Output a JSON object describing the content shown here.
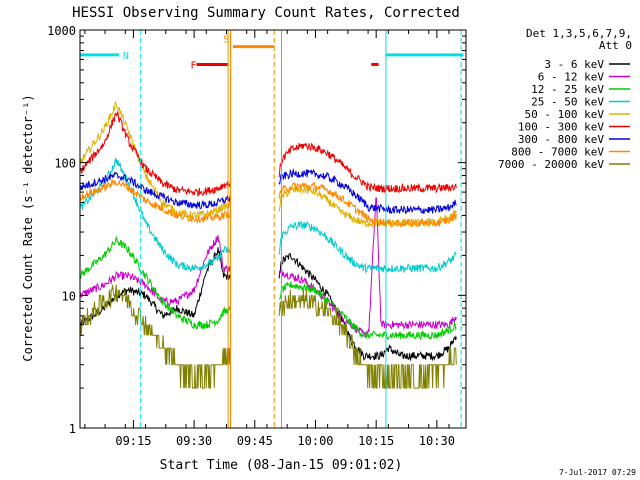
{
  "chart_data": {
    "type": "line",
    "title": "HESSI Observing Summary Count Rates, Corrected",
    "xlabel": "Start Time (08-Jan-15 09:01:02)",
    "ylabel": "Corrected Count Rate (s⁻¹ detector⁻¹)",
    "yscale": "log",
    "ylim": [
      1,
      1000
    ],
    "xlim_minutes": [
      9.03,
      10.62
    ],
    "y_ticks": [
      "1",
      "10",
      "100",
      "1000"
    ],
    "x_ticks": [
      {
        "label": "09:15",
        "t": 9.25
      },
      {
        "label": "09:30",
        "t": 9.5
      },
      {
        "label": "09:45",
        "t": 9.75
      },
      {
        "label": "10:00",
        "t": 10.0
      },
      {
        "label": "10:15",
        "t": 10.25
      },
      {
        "label": "10:30",
        "t": 10.5
      }
    ],
    "legend_title": [
      "Det 1,3,5,6,7,9,",
      "Att 0"
    ],
    "legend_position": "right",
    "footer": "7-Jul-2017 07:29",
    "gap": [
      9.65,
      9.85
    ],
    "series": [
      {
        "name": "3 - 6 keV",
        "color": "#000000",
        "t": [
          9.03,
          9.13,
          9.18,
          9.23,
          9.3,
          9.37,
          9.43,
          9.5,
          9.55,
          9.6,
          9.62,
          9.85,
          9.86,
          9.9,
          9.95,
          10.0,
          10.05,
          10.1,
          10.15,
          10.2,
          10.22,
          10.27,
          10.3,
          10.35,
          10.4,
          10.5,
          10.55,
          10.58
        ],
        "y": [
          6,
          8,
          10,
          11,
          10,
          7,
          8,
          7,
          15,
          22,
          14,
          13,
          18,
          20,
          16,
          13,
          10,
          7,
          4.5,
          3.5,
          3.5,
          3.5,
          4,
          3.5,
          3.5,
          3.5,
          4,
          5
        ]
      },
      {
        "name": "6 - 12 keV",
        "color": "#cc00cc",
        "t": [
          9.03,
          9.13,
          9.18,
          9.23,
          9.3,
          9.37,
          9.43,
          9.5,
          9.55,
          9.6,
          9.62,
          9.85,
          9.86,
          9.9,
          9.95,
          10.0,
          10.05,
          10.1,
          10.15,
          10.2,
          10.22,
          10.25,
          10.27,
          10.3,
          10.35,
          10.4,
          10.5,
          10.55,
          10.58
        ],
        "y": [
          10,
          12,
          14,
          14,
          12,
          9,
          9,
          11,
          20,
          28,
          16,
          14,
          15,
          14,
          13,
          11,
          9,
          7,
          6,
          5,
          5.5,
          60,
          6,
          6,
          6,
          6,
          6,
          6,
          7
        ]
      },
      {
        "name": "12 - 25 keV",
        "color": "#00cc00",
        "t": [
          9.03,
          9.13,
          9.18,
          9.23,
          9.3,
          9.37,
          9.43,
          9.5,
          9.55,
          9.6,
          9.62,
          9.85,
          9.86,
          9.9,
          9.95,
          10.0,
          10.05,
          10.1,
          10.15,
          10.2,
          10.22,
          10.27,
          10.3,
          10.35,
          10.4,
          10.5,
          10.55,
          10.58
        ],
        "y": [
          14,
          20,
          26,
          22,
          14,
          9,
          7,
          6,
          6,
          6.5,
          7.5,
          9,
          11,
          12,
          11.5,
          11,
          9,
          7.5,
          6,
          5,
          5,
          5,
          5,
          5,
          5,
          5,
          5.5,
          6
        ]
      },
      {
        "name": "25 - 50 keV",
        "color": "#00cccc",
        "t": [
          9.03,
          9.13,
          9.18,
          9.23,
          9.3,
          9.37,
          9.43,
          9.5,
          9.55,
          9.6,
          9.62,
          9.85,
          9.86,
          9.9,
          9.95,
          10.0,
          10.05,
          10.1,
          10.15,
          10.2,
          10.22,
          10.27,
          10.3,
          10.35,
          10.4,
          10.5,
          10.55,
          10.58
        ],
        "y": [
          45,
          70,
          105,
          70,
          35,
          22,
          17,
          16,
          17,
          19,
          22,
          20,
          28,
          33,
          34,
          32,
          27,
          22,
          18,
          16,
          16,
          16,
          16,
          16,
          16,
          16,
          18,
          20
        ]
      },
      {
        "name": "50 - 100 keV",
        "color": "#e0b000",
        "t": [
          9.03,
          9.13,
          9.18,
          9.23,
          9.3,
          9.37,
          9.43,
          9.5,
          9.55,
          9.6,
          9.62,
          9.85,
          9.86,
          9.9,
          9.95,
          10.0,
          10.05,
          10.1,
          10.15,
          10.2,
          10.22,
          10.27,
          10.3,
          10.35,
          10.4,
          10.5,
          10.55,
          10.58
        ],
        "y": [
          100,
          180,
          280,
          170,
          80,
          50,
          42,
          40,
          41,
          44,
          47,
          45,
          55,
          62,
          63,
          60,
          52,
          43,
          38,
          35,
          35,
          35,
          35,
          35,
          35,
          36,
          38,
          42
        ]
      },
      {
        "name": "100 - 300 keV",
        "color": "#ee0000",
        "t": [
          9.03,
          9.13,
          9.18,
          9.23,
          9.3,
          9.37,
          9.43,
          9.5,
          9.55,
          9.6,
          9.62,
          9.85,
          9.86,
          9.9,
          9.95,
          10.0,
          10.05,
          10.1,
          10.15,
          10.2,
          10.22,
          10.27,
          10.3,
          10.35,
          10.4,
          10.5,
          10.55,
          10.58
        ],
        "y": [
          85,
          140,
          240,
          145,
          90,
          70,
          62,
          60,
          61,
          64,
          68,
          80,
          105,
          125,
          135,
          130,
          118,
          100,
          82,
          70,
          65,
          64,
          64,
          64,
          64,
          64,
          65,
          66
        ]
      },
      {
        "name": "300 - 800 keV",
        "color": "#0000dd",
        "t": [
          9.03,
          9.13,
          9.18,
          9.23,
          9.3,
          9.37,
          9.43,
          9.5,
          9.55,
          9.6,
          9.62,
          9.85,
          9.86,
          9.9,
          9.95,
          10.0,
          10.05,
          10.1,
          10.15,
          10.2,
          10.22,
          10.27,
          10.3,
          10.35,
          10.4,
          10.5,
          10.55,
          10.58
        ],
        "y": [
          65,
          75,
          80,
          75,
          62,
          55,
          50,
          48,
          48,
          50,
          52,
          70,
          78,
          82,
          83,
          82,
          78,
          70,
          60,
          50,
          46,
          45,
          44,
          44,
          44,
          44,
          46,
          50
        ]
      },
      {
        "name": "800 - 7000 keV",
        "color": "#ff8800",
        "t": [
          9.03,
          9.13,
          9.18,
          9.23,
          9.3,
          9.37,
          9.43,
          9.5,
          9.55,
          9.6,
          9.62,
          9.85,
          9.86,
          9.9,
          9.95,
          10.0,
          10.05,
          10.1,
          10.15,
          10.2,
          10.22,
          10.27,
          10.3,
          10.35,
          10.4,
          10.5,
          10.55,
          10.58
        ],
        "y": [
          55,
          65,
          72,
          65,
          52,
          45,
          40,
          38,
          38,
          39,
          40,
          55,
          62,
          66,
          67,
          66,
          62,
          55,
          47,
          40,
          37,
          36,
          35,
          35,
          35,
          35,
          37,
          40
        ]
      },
      {
        "name": "7000 - 20000 keV",
        "color": "#808000",
        "t": [
          9.03,
          9.13,
          9.18,
          9.23,
          9.3,
          9.37,
          9.43,
          9.5,
          9.55,
          9.6,
          9.62,
          9.85,
          9.86,
          9.9,
          9.95,
          10.0,
          10.05,
          10.1,
          10.15,
          10.2,
          10.22,
          10.27,
          10.3,
          10.35,
          10.4,
          10.5,
          10.55,
          10.58
        ],
        "y": [
          6,
          9,
          11,
          9,
          6,
          4,
          3,
          2.5,
          2.5,
          3,
          3.5,
          7,
          8.5,
          9,
          9,
          8.5,
          7.5,
          6,
          4,
          3,
          2.5,
          2.5,
          2.5,
          2.5,
          2.5,
          2.5,
          3,
          3.5
        ]
      }
    ],
    "bars": [
      {
        "label": "N",
        "color": "#00e0e0",
        "t0": 9.03,
        "t1": 9.19,
        "y": 650
      },
      {
        "label": "",
        "color": "#00e0e0",
        "t0": 10.29,
        "t1": 10.61,
        "y": 650
      },
      {
        "label": "F",
        "color": "#ee0000",
        "t0": 9.51,
        "t1": 9.64,
        "y": 550
      },
      {
        "label": "",
        "color": "#ee0000",
        "t0": 10.23,
        "t1": 10.26,
        "y": 550
      },
      {
        "label": "S",
        "color": "#ff8800",
        "t0": 9.66,
        "t1": 9.83,
        "y": 750
      }
    ],
    "vlines": [
      {
        "t": 9.28,
        "color": "#00e0e0",
        "dash": true
      },
      {
        "t": 9.64,
        "color": "#ff8800",
        "dash": false
      },
      {
        "t": 9.65,
        "color": "#ff8800",
        "dash": false
      },
      {
        "t": 9.83,
        "color": "#ff8800",
        "dash": true
      },
      {
        "t": 9.86,
        "color": "#ff8800",
        "dash": false
      },
      {
        "t": 10.29,
        "color": "#00e0e0",
        "dash": false
      },
      {
        "t": 10.6,
        "color": "#00e0e0",
        "dash": true
      },
      {
        "t": 9.03,
        "color": "#00e0e0",
        "dash": false
      }
    ]
  }
}
